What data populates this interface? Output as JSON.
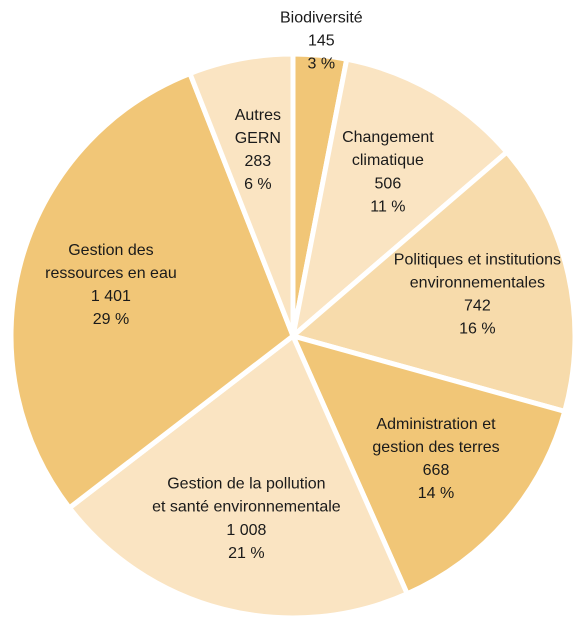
{
  "chart_data": {
    "type": "pie",
    "categories": [
      "Biodiversité",
      "Changement\nclimatique",
      "Politiques et institutions\nenvironnementales",
      "Administration et\ngestion des terres",
      "Gestion de la pollution\net santé environnementale",
      "Gestion des\nressources en eau",
      "Autres\nGERN"
    ],
    "values": [
      145,
      506,
      742,
      668,
      1008,
      1401,
      283
    ],
    "value_labels": [
      "145",
      "506",
      "742",
      "668",
      "1 008",
      "1 401",
      "283"
    ],
    "percents": [
      3,
      11,
      16,
      14,
      21,
      29,
      6
    ],
    "percent_labels": [
      "3 %",
      "11 %",
      "16 %",
      "14 %",
      "21 %",
      "29 %",
      "6 %"
    ],
    "colors": [
      "#f1c677",
      "#fae4c2",
      "#f7dbab",
      "#f1c677",
      "#fae4c2",
      "#f1c677",
      "#fae4c2"
    ]
  }
}
